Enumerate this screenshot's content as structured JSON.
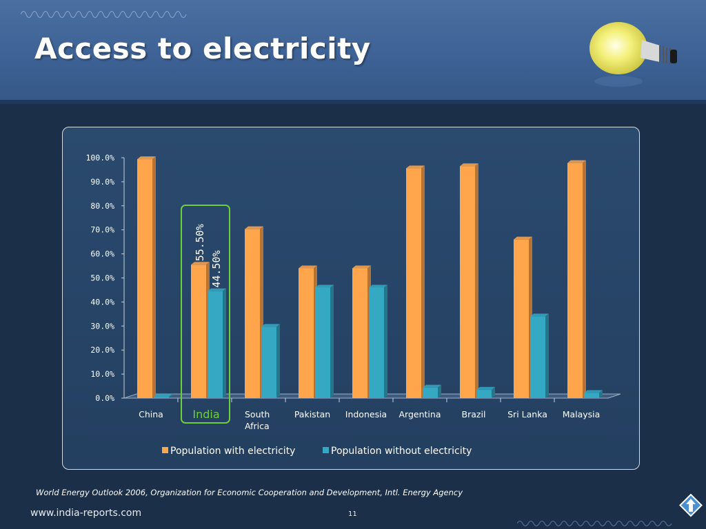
{
  "slide": {
    "title": "Access to electricity",
    "source": "World Energy Outlook 2006, Organization for Economic Cooperation and Development, Intl. Energy Agency",
    "website": "www.india-reports.com",
    "page_number": "11"
  },
  "icons": {
    "decor": "light-bulb-icon",
    "nav": "up-arrow-icon"
  },
  "colors": {
    "with": "#ffa64d",
    "without": "#35a8c4",
    "highlight": "#6fcf3b",
    "header": "#3d6194",
    "background": "#1c2f48"
  },
  "chart_data": {
    "type": "bar",
    "categories": [
      "China",
      "India",
      "South Africa",
      "Pakistan",
      "Indonesia",
      "Argentina",
      "Brazil",
      "Sri Lanka",
      "Malaysia"
    ],
    "series": [
      {
        "name": "Population with electricity",
        "values": [
          99.4,
          55.5,
          70.3,
          54.0,
          54.0,
          95.6,
          96.5,
          66.0,
          97.8
        ]
      },
      {
        "name": "Population without electricity",
        "values": [
          0.6,
          44.5,
          29.7,
          46.0,
          46.0,
          4.4,
          3.5,
          34.0,
          2.2
        ]
      }
    ],
    "yticks": [
      "0.0%",
      "10.0%",
      "20.0%",
      "30.0%",
      "40.0%",
      "50.0%",
      "60.0%",
      "70.0%",
      "80.0%",
      "90.0%",
      "100.0%"
    ],
    "ylim": [
      0,
      100
    ],
    "data_labels": {
      "India": [
        "55.50%",
        "44.50%"
      ]
    },
    "highlight_category": "India",
    "legend_position": "bottom"
  }
}
